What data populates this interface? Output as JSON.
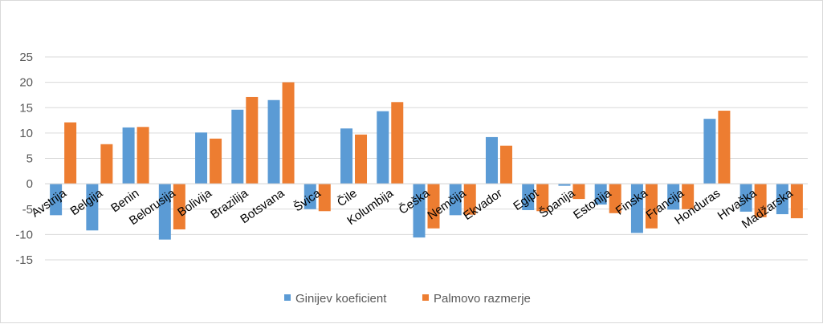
{
  "chart_data": {
    "type": "bar",
    "title": "",
    "xlabel": "",
    "ylabel": "",
    "ylim": [
      -15,
      25
    ],
    "yticks": [
      -15,
      -10,
      -5,
      0,
      5,
      10,
      15,
      20,
      25
    ],
    "grid": true,
    "legend_position": "bottom",
    "categories": [
      "Avstrija",
      "Belgija",
      "Benin",
      "Belorusija",
      "Bolivija",
      "Brazilija",
      "Botsvana",
      "Švica",
      "Čile",
      "Kolumbija",
      "Češka",
      "Nemčija",
      "Ekvador",
      "Egipt",
      "Španija",
      "Estonija",
      "Finska",
      "Francija",
      "Honduras",
      "Hrvaška",
      "Madžarska"
    ],
    "series": [
      {
        "name": "Ginijev koeficient",
        "color": "#5b9bd5",
        "values": [
          -6.2,
          -9.2,
          11.1,
          -11.0,
          10.1,
          14.6,
          16.5,
          -5.0,
          10.9,
          14.3,
          -10.6,
          -6.2,
          9.2,
          -5.2,
          -0.4,
          -4.1,
          -9.7,
          -5.1,
          12.8,
          -5.5,
          -6.0
        ]
      },
      {
        "name": "Palmovo razmerje",
        "color": "#ed7d31",
        "values": [
          12.1,
          7.8,
          11.2,
          -9.0,
          8.9,
          17.1,
          20.0,
          -5.4,
          9.7,
          16.1,
          -8.8,
          -6.1,
          7.5,
          -5.4,
          -3.0,
          -5.8,
          -8.8,
          -5.0,
          14.4,
          -6.6,
          -6.8
        ]
      }
    ]
  },
  "legend": {
    "items": [
      {
        "label": "Ginijev koeficient",
        "color": "#5b9bd5"
      },
      {
        "label": "Palmovo razmerje",
        "color": "#ed7d31"
      }
    ]
  }
}
